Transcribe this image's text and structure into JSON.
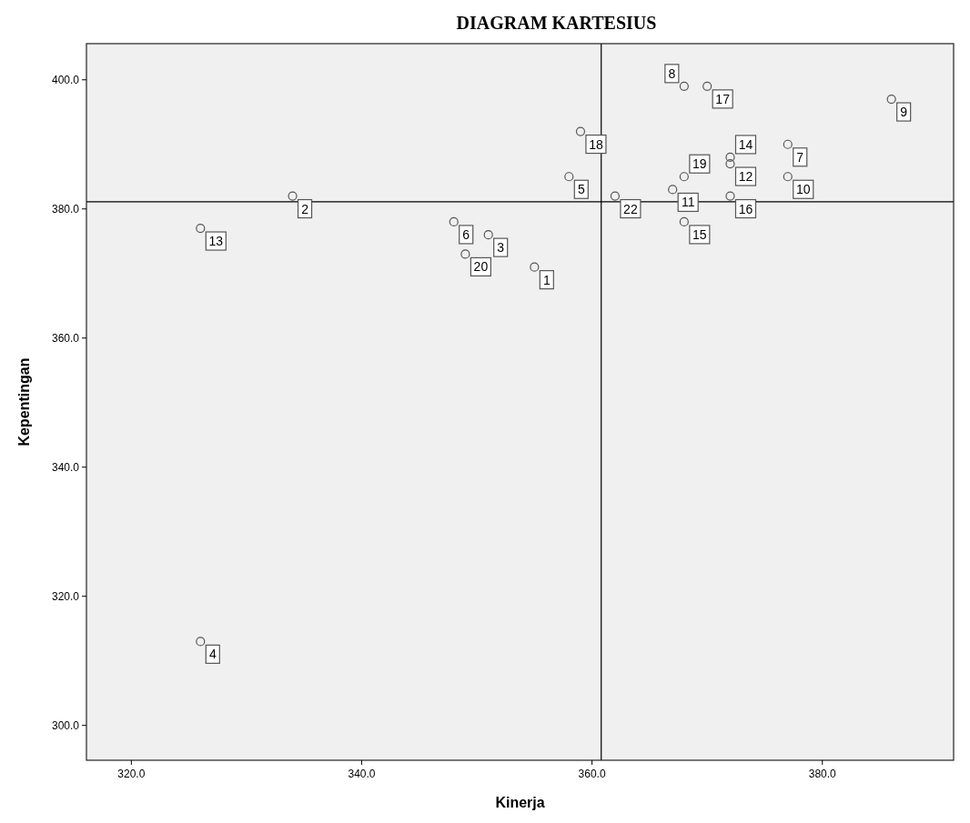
{
  "chart_data": {
    "type": "scatter",
    "title": "DIAGRAM KARTESIUS",
    "xlabel": "Kinerja",
    "ylabel": "Kepentingan",
    "xlim": [
      316.1,
      391.4
    ],
    "ylim": [
      294.6,
      405.6
    ],
    "xticks": [
      {
        "value": 320,
        "label": "320.0"
      },
      {
        "value": 340,
        "label": "340.0"
      },
      {
        "value": 360,
        "label": "360.0"
      },
      {
        "value": 380,
        "label": "380.0"
      }
    ],
    "yticks": [
      {
        "value": 300,
        "label": "300.0"
      },
      {
        "value": 320,
        "label": "320.0"
      },
      {
        "value": 340,
        "label": "340.0"
      },
      {
        "value": 360,
        "label": "360.0"
      },
      {
        "value": 380,
        "label": "380.0"
      },
      {
        "value": 400,
        "label": "400.0"
      }
    ],
    "series": [
      {
        "color": "#555555",
        "x": [
          355,
          334,
          351,
          326,
          358,
          348,
          377,
          368,
          386,
          377,
          367,
          372,
          326,
          372,
          368,
          372,
          370,
          359,
          368,
          349,
          362
        ],
        "values": [
          371,
          382,
          376,
          313,
          385,
          378,
          390,
          399,
          397,
          385,
          383,
          387,
          377,
          388,
          378,
          382,
          399,
          392,
          385,
          373,
          382
        ]
      }
    ],
    "annotations": [
      {
        "text": "1",
        "x": 355,
        "y": 371
      },
      {
        "text": "2",
        "x": 334,
        "y": 382
      },
      {
        "text": "3",
        "x": 351,
        "y": 376
      },
      {
        "text": "4",
        "x": 326,
        "y": 313
      },
      {
        "text": "5",
        "x": 358,
        "y": 385
      },
      {
        "text": "6",
        "x": 348,
        "y": 378
      },
      {
        "text": "7",
        "x": 377,
        "y": 390
      },
      {
        "text": "8",
        "x": 368,
        "y": 399
      },
      {
        "text": "9",
        "x": 386,
        "y": 397
      },
      {
        "text": "10",
        "x": 377,
        "y": 385
      },
      {
        "text": "11",
        "x": 367,
        "y": 383
      },
      {
        "text": "12",
        "x": 372,
        "y": 387
      },
      {
        "text": "13",
        "x": 326,
        "y": 377
      },
      {
        "text": "14",
        "x": 372,
        "y": 388
      },
      {
        "text": "15",
        "x": 368,
        "y": 378
      },
      {
        "text": "16",
        "x": 372,
        "y": 382
      },
      {
        "text": "17",
        "x": 370,
        "y": 399
      },
      {
        "text": "18",
        "x": 359,
        "y": 392
      },
      {
        "text": "19",
        "x": 368,
        "y": 385
      },
      {
        "text": "20",
        "x": 349,
        "y": 373
      },
      {
        "text": "22",
        "x": 362,
        "y": 382
      }
    ],
    "ref_lines": [
      {
        "axis": "x",
        "value": 360.8
      },
      {
        "axis": "y",
        "value": 381.1
      }
    ],
    "marker": "circle",
    "grid": false
  }
}
